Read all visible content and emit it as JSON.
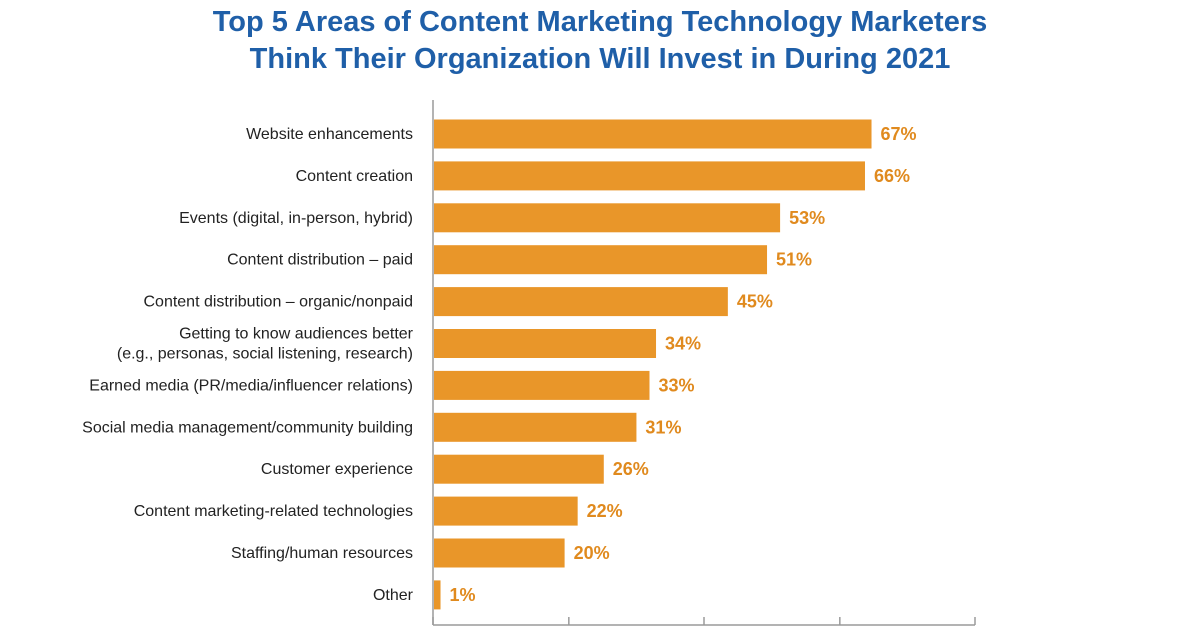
{
  "chart_data": {
    "type": "bar",
    "orientation": "horizontal",
    "title_lines": [
      "Top 5 Areas of Content Marketing Technology Marketers",
      "Think Their Organization Will Invest in During 2021"
    ],
    "categories": [
      [
        "Website enhancements"
      ],
      [
        "Content creation"
      ],
      [
        "Events (digital, in-person, hybrid)"
      ],
      [
        "Content distribution – paid"
      ],
      [
        "Content distribution – organic/nonpaid"
      ],
      [
        "Getting to know audiences better",
        "(e.g., personas, social listening, research)"
      ],
      [
        "Earned media (PR/media/influencer relations)"
      ],
      [
        "Social media management/community building"
      ],
      [
        "Customer experience"
      ],
      [
        "Content marketing-related technologies"
      ],
      [
        "Staffing/human resources"
      ],
      [
        "Other"
      ]
    ],
    "values": [
      67,
      66,
      53,
      51,
      45,
      34,
      33,
      31,
      26,
      22,
      20,
      1
    ],
    "value_labels": [
      "67%",
      "66%",
      "53%",
      "51%",
      "45%",
      "34%",
      "33%",
      "31%",
      "26%",
      "22%",
      "20%",
      "1%"
    ],
    "xlim": [
      0,
      83
    ],
    "xticks": [
      0,
      20.8,
      41.5,
      62.3,
      83
    ],
    "xlabel": "",
    "ylabel": "",
    "grid": false,
    "legend": "none",
    "colors": {
      "bar": "#e99629",
      "value_label": "#e08a1e",
      "title": "#1f5fa8",
      "axis": "#9a9a9a"
    }
  }
}
